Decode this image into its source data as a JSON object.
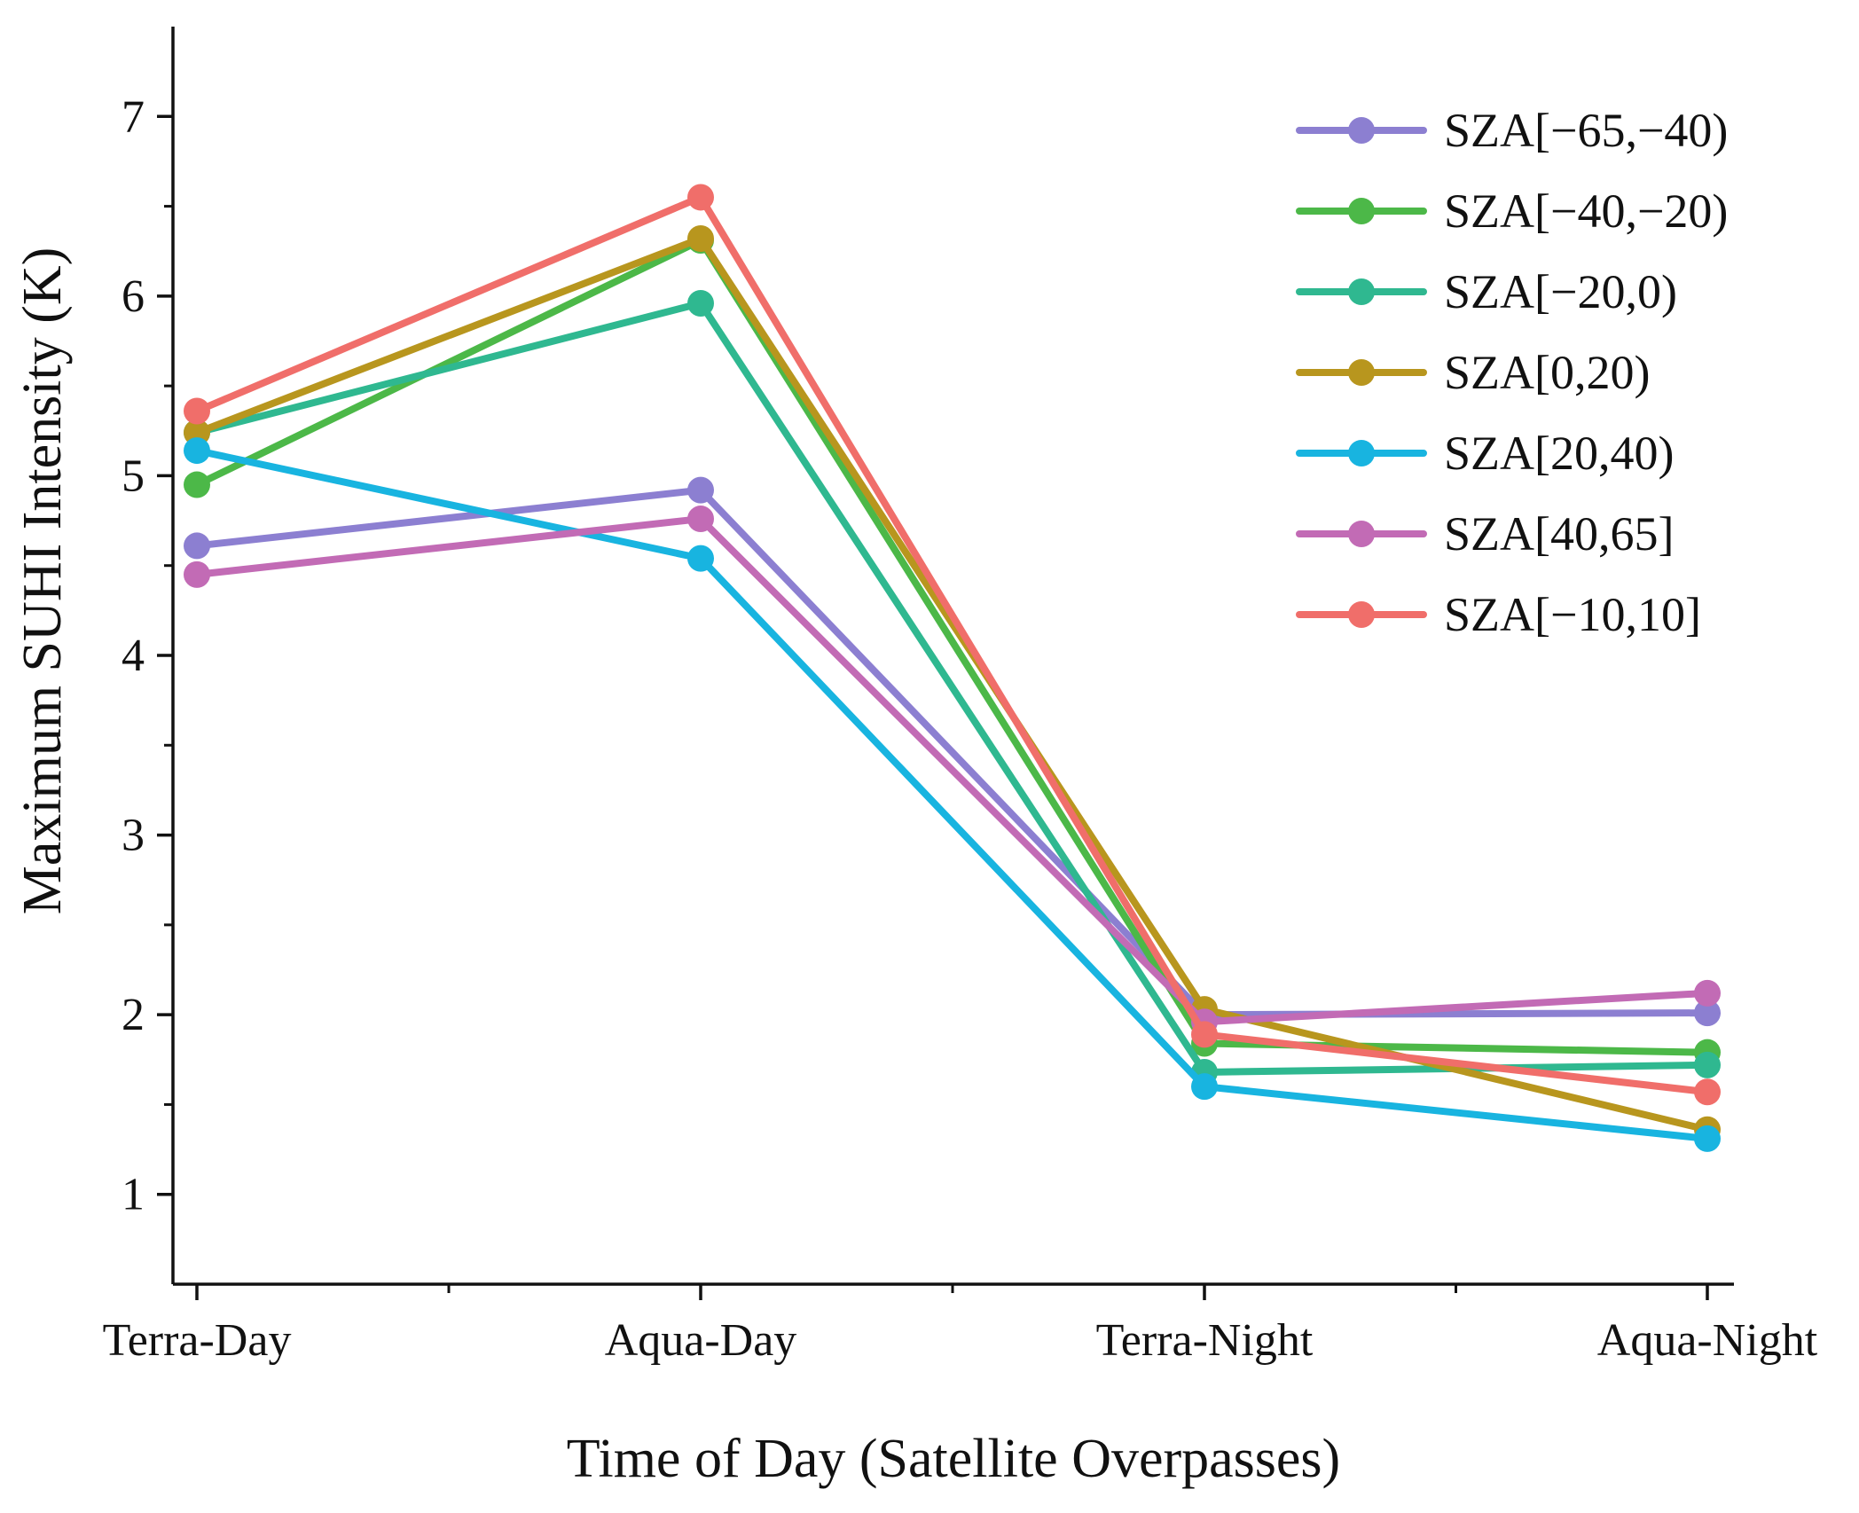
{
  "chart_data": {
    "type": "line",
    "title": "",
    "xlabel": "Time of Day (Satellite Overpasses)",
    "ylabel": "Maximum SUHI Intensity (K)",
    "categories": [
      "Terra-Day",
      "Aqua-Day",
      "Terra-Night",
      "Aqua-Night"
    ],
    "ylim": [
      0.5,
      7.5
    ],
    "yticks": [
      1,
      2,
      3,
      4,
      5,
      6,
      7
    ],
    "ytick_labels": [
      "1",
      "2",
      "3",
      "4",
      "5",
      "6",
      "7"
    ],
    "grid": false,
    "legend_position": "top-right",
    "series": [
      {
        "name": "SZA[−65,−40)",
        "color": "#8c7fd1",
        "values": [
          4.61,
          4.92,
          2.0,
          2.01
        ]
      },
      {
        "name": "SZA[−40,−20)",
        "color": "#4cb848",
        "values": [
          4.95,
          6.31,
          1.84,
          1.79
        ]
      },
      {
        "name": "SZA[−20,0)",
        "color": "#2fb890",
        "values": [
          5.24,
          5.96,
          1.68,
          1.72
        ]
      },
      {
        "name": "SZA[0,20)",
        "color": "#b8961e",
        "values": [
          5.24,
          6.32,
          2.03,
          1.36
        ]
      },
      {
        "name": "SZA[20,40)",
        "color": "#18b4e0",
        "values": [
          5.14,
          4.54,
          1.6,
          1.31
        ]
      },
      {
        "name": "SZA[40,65]",
        "color": "#c26bb5",
        "values": [
          4.45,
          4.76,
          1.96,
          2.12
        ]
      },
      {
        "name": "SZA[−10,10]",
        "color": "#f06e6a",
        "values": [
          5.36,
          6.55,
          1.89,
          1.57
        ]
      }
    ]
  }
}
